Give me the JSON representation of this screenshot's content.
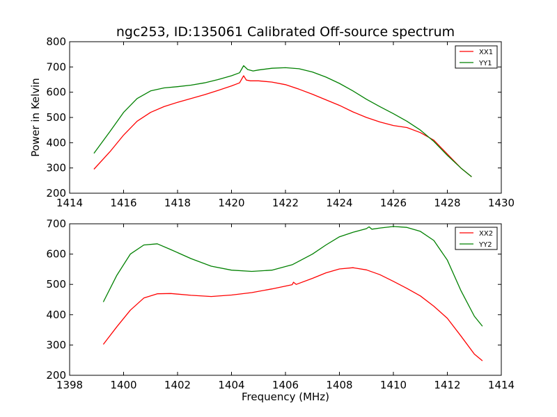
{
  "chart_data": [
    {
      "type": "line",
      "title": "ngc253, ID:135061 Calibrated Off-source spectrum",
      "xlabel": "",
      "ylabel": "Power in Kelvin",
      "xlim": [
        1414,
        1430
      ],
      "ylim": [
        200,
        800
      ],
      "xticks": [
        "1414",
        "1416",
        "1418",
        "1420",
        "1422",
        "1424",
        "1426",
        "1428",
        "1430"
      ],
      "yticks": [
        "200",
        "300",
        "400",
        "500",
        "600",
        "700",
        "800"
      ],
      "grid": false,
      "legend_position": "top-right",
      "series": [
        {
          "name": "XX1",
          "color": "#ff0000",
          "points": [
            [
              1414.9,
              295
            ],
            [
              1415.5,
              365
            ],
            [
              1416.0,
              430
            ],
            [
              1416.5,
              485
            ],
            [
              1417.0,
              520
            ],
            [
              1417.5,
              543
            ],
            [
              1418.0,
              560
            ],
            [
              1418.5,
              575
            ],
            [
              1419.0,
              590
            ],
            [
              1419.5,
              607
            ],
            [
              1420.0,
              625
            ],
            [
              1420.3,
              637
            ],
            [
              1420.45,
              665
            ],
            [
              1420.55,
              648
            ],
            [
              1420.7,
              645
            ],
            [
              1421.0,
              645
            ],
            [
              1421.5,
              640
            ],
            [
              1422.0,
              630
            ],
            [
              1422.5,
              612
            ],
            [
              1423.0,
              592
            ],
            [
              1423.5,
              570
            ],
            [
              1424.0,
              548
            ],
            [
              1424.5,
              522
            ],
            [
              1425.0,
              500
            ],
            [
              1425.5,
              482
            ],
            [
              1426.0,
              468
            ],
            [
              1426.5,
              460
            ],
            [
              1427.0,
              440
            ],
            [
              1427.5,
              410
            ],
            [
              1428.0,
              355
            ],
            [
              1428.5,
              300
            ],
            [
              1428.9,
              265
            ]
          ]
        },
        {
          "name": "YY1",
          "color": "#008000",
          "points": [
            [
              1414.9,
              358
            ],
            [
              1415.5,
              445
            ],
            [
              1416.0,
              520
            ],
            [
              1416.5,
              575
            ],
            [
              1417.0,
              605
            ],
            [
              1417.5,
              617
            ],
            [
              1418.0,
              622
            ],
            [
              1418.5,
              628
            ],
            [
              1419.0,
              637
            ],
            [
              1419.5,
              650
            ],
            [
              1420.0,
              665
            ],
            [
              1420.3,
              677
            ],
            [
              1420.45,
              705
            ],
            [
              1420.6,
              690
            ],
            [
              1420.8,
              684
            ],
            [
              1421.0,
              688
            ],
            [
              1421.5,
              695
            ],
            [
              1422.0,
              697
            ],
            [
              1422.5,
              693
            ],
            [
              1423.0,
              680
            ],
            [
              1423.5,
              660
            ],
            [
              1424.0,
              635
            ],
            [
              1424.5,
              605
            ],
            [
              1425.0,
              572
            ],
            [
              1425.5,
              543
            ],
            [
              1426.0,
              515
            ],
            [
              1426.5,
              485
            ],
            [
              1427.0,
              450
            ],
            [
              1427.5,
              405
            ],
            [
              1428.0,
              350
            ],
            [
              1428.5,
              300
            ],
            [
              1428.9,
              265
            ]
          ]
        }
      ]
    },
    {
      "type": "line",
      "title": "",
      "xlabel": "Frequency (MHz)",
      "ylabel": "",
      "xlim": [
        1398,
        1414
      ],
      "ylim": [
        200,
        700
      ],
      "xticks": [
        "1398",
        "1400",
        "1402",
        "1404",
        "1406",
        "1408",
        "1410",
        "1412",
        "1414"
      ],
      "yticks": [
        "200",
        "300",
        "400",
        "500",
        "600",
        "700"
      ],
      "grid": false,
      "legend_position": "top-right",
      "series": [
        {
          "name": "XX2",
          "color": "#ff0000",
          "points": [
            [
              1399.25,
              302
            ],
            [
              1399.75,
              360
            ],
            [
              1400.25,
              415
            ],
            [
              1400.75,
              455
            ],
            [
              1401.25,
              469
            ],
            [
              1401.75,
              470
            ],
            [
              1402.5,
              464
            ],
            [
              1403.25,
              460
            ],
            [
              1404.0,
              465
            ],
            [
              1404.75,
              473
            ],
            [
              1405.5,
              485
            ],
            [
              1406.25,
              499
            ],
            [
              1406.3,
              507
            ],
            [
              1406.4,
              500
            ],
            [
              1407.0,
              520
            ],
            [
              1407.5,
              538
            ],
            [
              1408.0,
              551
            ],
            [
              1408.5,
              555
            ],
            [
              1409.0,
              548
            ],
            [
              1409.5,
              532
            ],
            [
              1410.0,
              510
            ],
            [
              1410.5,
              487
            ],
            [
              1411.0,
              462
            ],
            [
              1411.5,
              428
            ],
            [
              1412.0,
              388
            ],
            [
              1412.5,
              330
            ],
            [
              1413.0,
              270
            ],
            [
              1413.3,
              248
            ]
          ]
        },
        {
          "name": "YY2",
          "color": "#008000",
          "points": [
            [
              1399.25,
              442
            ],
            [
              1399.75,
              530
            ],
            [
              1400.25,
              600
            ],
            [
              1400.75,
              630
            ],
            [
              1401.25,
              634
            ],
            [
              1401.75,
              615
            ],
            [
              1402.5,
              585
            ],
            [
              1403.25,
              560
            ],
            [
              1404.0,
              547
            ],
            [
              1404.75,
              543
            ],
            [
              1405.5,
              547
            ],
            [
              1406.25,
              565
            ],
            [
              1407.0,
              600
            ],
            [
              1407.5,
              630
            ],
            [
              1408.0,
              657
            ],
            [
              1408.5,
              672
            ],
            [
              1409.0,
              684
            ],
            [
              1409.1,
              690
            ],
            [
              1409.2,
              682
            ],
            [
              1409.5,
              686
            ],
            [
              1410.0,
              691
            ],
            [
              1410.5,
              688
            ],
            [
              1411.0,
              675
            ],
            [
              1411.5,
              645
            ],
            [
              1412.0,
              580
            ],
            [
              1412.5,
              480
            ],
            [
              1413.0,
              395
            ],
            [
              1413.3,
              362
            ]
          ]
        }
      ]
    }
  ]
}
